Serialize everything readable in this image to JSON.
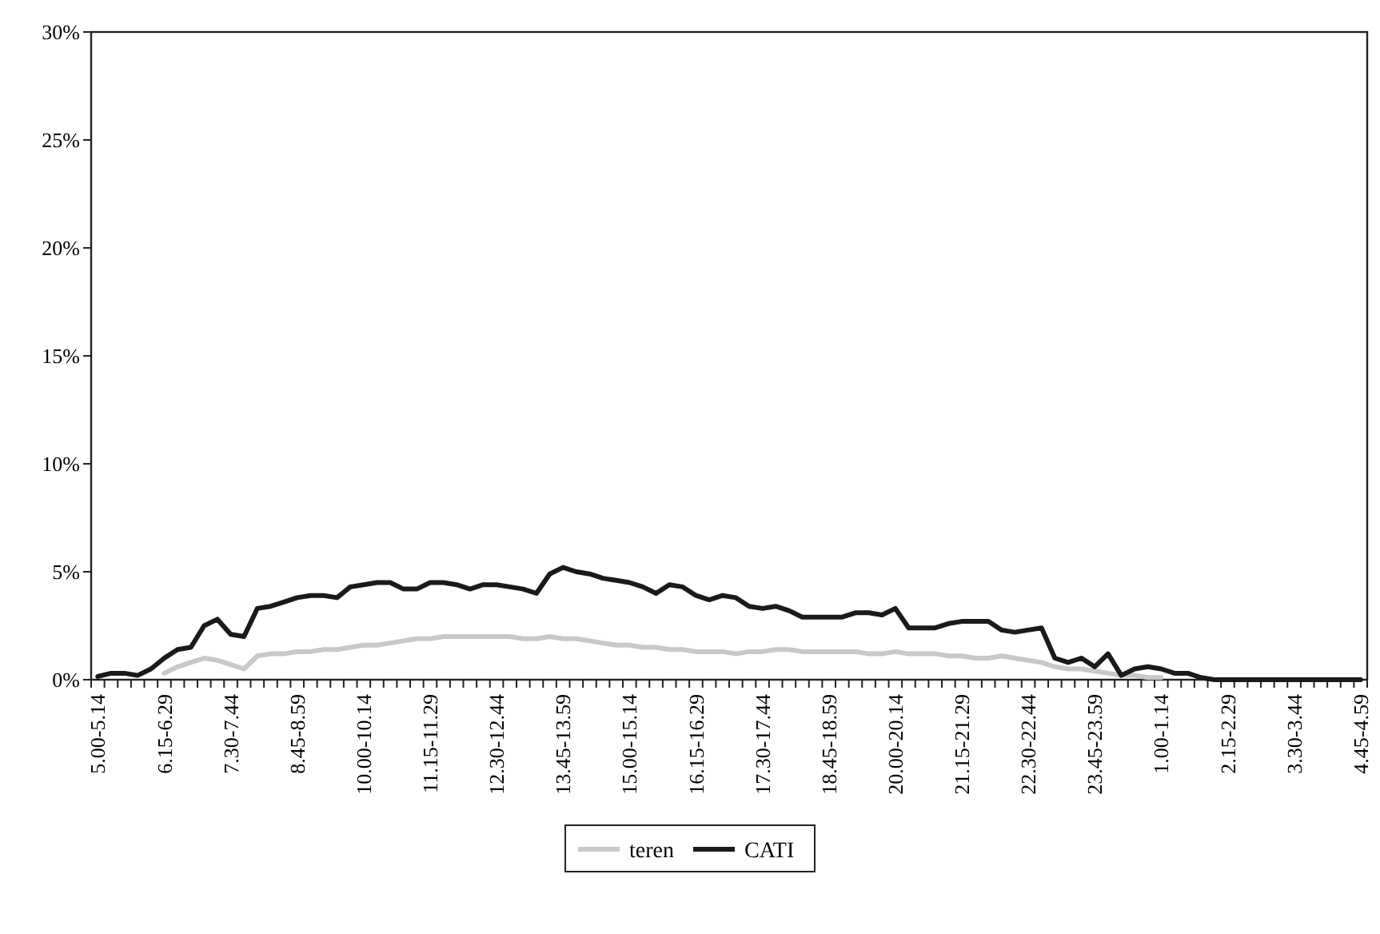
{
  "chart_data": {
    "type": "line",
    "categories": [
      "5.00-5.14",
      null,
      null,
      null,
      null,
      "6.15-6.29",
      null,
      null,
      null,
      null,
      "7.30-7.44",
      null,
      null,
      null,
      null,
      "8.45-8.59",
      null,
      null,
      null,
      null,
      "10.00-10.14",
      null,
      null,
      null,
      null,
      "11.15-11.29",
      null,
      null,
      null,
      null,
      "12.30-12.44",
      null,
      null,
      null,
      null,
      "13.45-13.59",
      null,
      null,
      null,
      null,
      "15.00-15.14",
      null,
      null,
      null,
      null,
      "16.15-16.29",
      null,
      null,
      null,
      null,
      "17.30-17.44",
      null,
      null,
      null,
      null,
      "18.45-18.59",
      null,
      null,
      null,
      null,
      "20.00-20.14",
      null,
      null,
      null,
      null,
      "21.15-21.29",
      null,
      null,
      null,
      null,
      "22.30-22.44",
      null,
      null,
      null,
      null,
      "23.45-23.59",
      null,
      null,
      null,
      null,
      "1.00-1.14",
      null,
      null,
      null,
      null,
      "2.15-2.29",
      null,
      null,
      null,
      null,
      "3.30-3.44",
      null,
      null,
      null,
      null,
      "4.45-4.59"
    ],
    "series": [
      {
        "name": "teren",
        "color": "#c8c8c8",
        "values": [
          null,
          null,
          null,
          null,
          null,
          0.3,
          0.6,
          0.8,
          1.0,
          0.9,
          0.7,
          0.5,
          1.1,
          1.2,
          1.2,
          1.3,
          1.3,
          1.4,
          1.4,
          1.5,
          1.6,
          1.6,
          1.7,
          1.8,
          1.9,
          1.9,
          2.0,
          2.0,
          2.0,
          2.0,
          2.0,
          2.0,
          1.9,
          1.9,
          2.0,
          1.9,
          1.9,
          1.8,
          1.7,
          1.6,
          1.6,
          1.5,
          1.5,
          1.4,
          1.4,
          1.3,
          1.3,
          1.3,
          1.2,
          1.3,
          1.3,
          1.4,
          1.4,
          1.3,
          1.3,
          1.3,
          1.3,
          1.3,
          1.2,
          1.2,
          1.3,
          1.2,
          1.2,
          1.2,
          1.1,
          1.1,
          1.0,
          1.0,
          1.1,
          1.0,
          0.9,
          0.8,
          0.6,
          0.5,
          0.5,
          0.4,
          0.3,
          0.2,
          0.2,
          0.1,
          0.1,
          null,
          null,
          null,
          null,
          null,
          null,
          null,
          null,
          null,
          null,
          null,
          null,
          null,
          null,
          null
        ]
      },
      {
        "name": "CATI",
        "color": "#1a1a1a",
        "values": [
          0.15,
          0.3,
          0.3,
          0.2,
          0.5,
          1.0,
          1.4,
          1.5,
          2.5,
          2.8,
          2.1,
          2.0,
          3.3,
          3.4,
          3.6,
          3.8,
          3.9,
          3.9,
          3.8,
          4.3,
          4.4,
          4.5,
          4.5,
          4.2,
          4.2,
          4.5,
          4.5,
          4.4,
          4.2,
          4.4,
          4.4,
          4.3,
          4.2,
          4.0,
          4.9,
          5.2,
          5.0,
          4.9,
          4.7,
          4.6,
          4.5,
          4.3,
          4.0,
          4.4,
          4.3,
          3.9,
          3.7,
          3.9,
          3.8,
          3.4,
          3.3,
          3.4,
          3.2,
          2.9,
          2.9,
          2.9,
          2.9,
          3.1,
          3.1,
          3.0,
          3.3,
          2.4,
          2.4,
          2.4,
          2.6,
          2.7,
          2.7,
          2.7,
          2.3,
          2.2,
          2.3,
          2.4,
          1.0,
          0.8,
          1.0,
          0.6,
          1.2,
          0.2,
          0.5,
          0.6,
          0.5,
          0.3,
          0.3,
          0.1,
          0,
          0,
          0,
          0,
          0,
          0,
          0,
          0,
          0,
          0,
          0,
          0
        ]
      }
    ],
    "ylim": [
      0,
      30
    ],
    "yticks": [
      {
        "value": 0,
        "label": "0%"
      },
      {
        "value": 5,
        "label": "5%"
      },
      {
        "value": 10,
        "label": "10%"
      },
      {
        "value": 15,
        "label": "15%"
      },
      {
        "value": 20,
        "label": "20%"
      },
      {
        "value": 25,
        "label": "25%"
      },
      {
        "value": 30,
        "label": "30%"
      }
    ],
    "grid": false,
    "legend": "bottom",
    "marker": "none",
    "line_style": "solid"
  }
}
